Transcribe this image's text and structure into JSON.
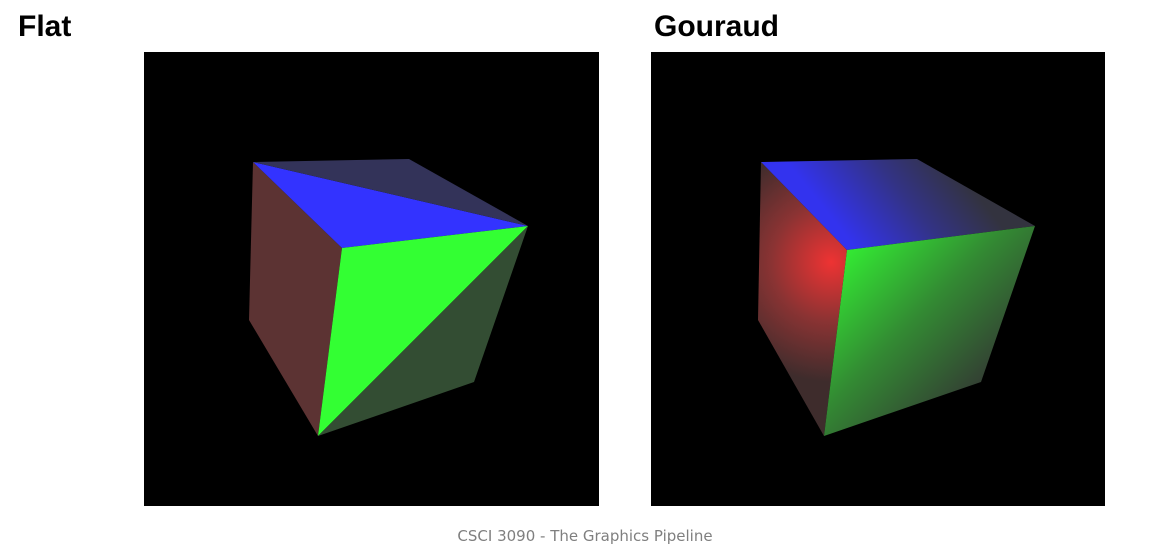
{
  "panels": {
    "flat": {
      "title": "Flat"
    },
    "gouraud": {
      "title": "Gouraud"
    }
  },
  "footer": {
    "text": "CSCI 3090 - The Graphics Pipeline"
  },
  "colors": {
    "viewport_background": "#000000",
    "red_face_dim": "#5c3333",
    "blue_face_bright": "#3333ff",
    "blue_face_dim": "#333359",
    "green_face_bright": "#33ff33",
    "green_face_dim": "#334d33"
  }
}
